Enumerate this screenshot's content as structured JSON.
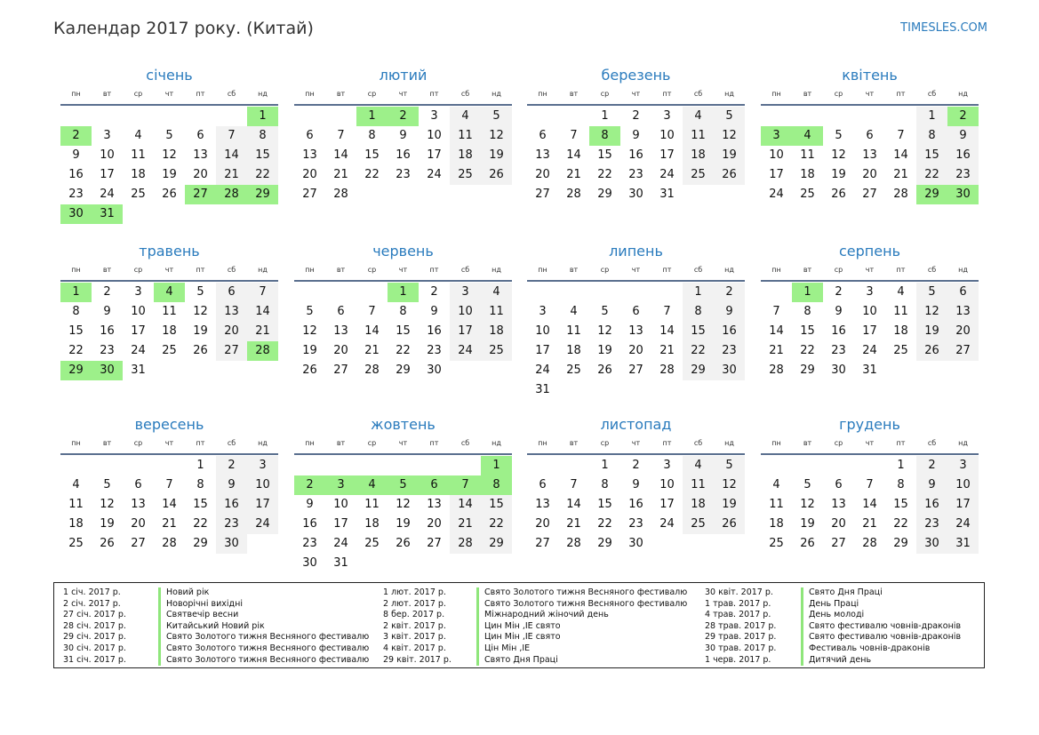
{
  "header": {
    "title": "Календар 2017 року. (Китай)",
    "brand": "TIMESLES.COM"
  },
  "weekdays": [
    "пн",
    "вт",
    "ср",
    "чт",
    "пт",
    "сб",
    "нд"
  ],
  "months": [
    {
      "name": "січень",
      "offset": 6,
      "days": 31,
      "holidays": [
        1,
        2,
        27,
        28,
        29,
        30,
        31
      ]
    },
    {
      "name": "лютий",
      "offset": 2,
      "days": 28,
      "holidays": [
        1,
        2
      ]
    },
    {
      "name": "березень",
      "offset": 2,
      "days": 31,
      "holidays": [
        8
      ]
    },
    {
      "name": "квітень",
      "offset": 5,
      "days": 30,
      "holidays": [
        2,
        3,
        4,
        29,
        30
      ]
    },
    {
      "name": "травень",
      "offset": 0,
      "days": 31,
      "holidays": [
        1,
        4,
        28,
        29,
        30
      ]
    },
    {
      "name": "червень",
      "offset": 3,
      "days": 30,
      "holidays": [
        1
      ]
    },
    {
      "name": "липень",
      "offset": 5,
      "days": 31,
      "holidays": []
    },
    {
      "name": "серпень",
      "offset": 1,
      "days": 31,
      "holidays": [
        1
      ]
    },
    {
      "name": "вересень",
      "offset": 4,
      "days": 30,
      "holidays": []
    },
    {
      "name": "жовтень",
      "offset": 6,
      "days": 31,
      "holidays": [
        1,
        2,
        3,
        4,
        5,
        6,
        7,
        8
      ]
    },
    {
      "name": "листопад",
      "offset": 2,
      "days": 30,
      "holidays": []
    },
    {
      "name": "грудень",
      "offset": 4,
      "days": 31,
      "holidays": []
    }
  ],
  "legend": [
    [
      {
        "date": "1 січ. 2017 р.",
        "name": "Новий рік"
      },
      {
        "date": "2 січ. 2017 р.",
        "name": "Новорічні вихідні"
      },
      {
        "date": "27 січ. 2017 р.",
        "name": "Святвечір весни"
      },
      {
        "date": "28 січ. 2017 р.",
        "name": "Китайський Новий рік"
      },
      {
        "date": "29 січ. 2017 р.",
        "name": "Свято Золотого тижня Весняного фестивалю"
      },
      {
        "date": "30 січ. 2017 р.",
        "name": "Свято Золотого тижня Весняного фестивалю"
      },
      {
        "date": "31 січ. 2017 р.",
        "name": "Свято Золотого тижня Весняного фестивалю"
      }
    ],
    [
      {
        "date": "1 лют. 2017 р.",
        "name": "Свято Золотого тижня Весняного фестивалю"
      },
      {
        "date": "2 лют. 2017 р.",
        "name": "Свято Золотого тижня Весняного фестивалю"
      },
      {
        "date": "8 бер. 2017 р.",
        "name": "Міжнародний жіночий день"
      },
      {
        "date": "2 квіт. 2017 р.",
        "name": "Цин Мін ,IE свято"
      },
      {
        "date": "3 квіт. 2017 р.",
        "name": "Цин Мін ,IE свято"
      },
      {
        "date": "4 квіт. 2017 р.",
        "name": "Цін Мін ,IE"
      },
      {
        "date": "29 квіт. 2017 р.",
        "name": "Свято Дня Праці"
      }
    ],
    [
      {
        "date": "30 квіт. 2017 р.",
        "name": "Свято Дня Праці"
      },
      {
        "date": "1 трав. 2017 р.",
        "name": "День Праці"
      },
      {
        "date": "4 трав. 2017 р.",
        "name": "День молоді"
      },
      {
        "date": "28 трав. 2017 р.",
        "name": "Свято фестивалю човнів-драконів"
      },
      {
        "date": "29 трав. 2017 р.",
        "name": "Свято фестивалю човнів-драконів"
      },
      {
        "date": "30 трав. 2017 р.",
        "name": "Фестиваль човнів-драконів"
      },
      {
        "date": "1 черв. 2017 р.",
        "name": "Дитячий день"
      }
    ]
  ]
}
